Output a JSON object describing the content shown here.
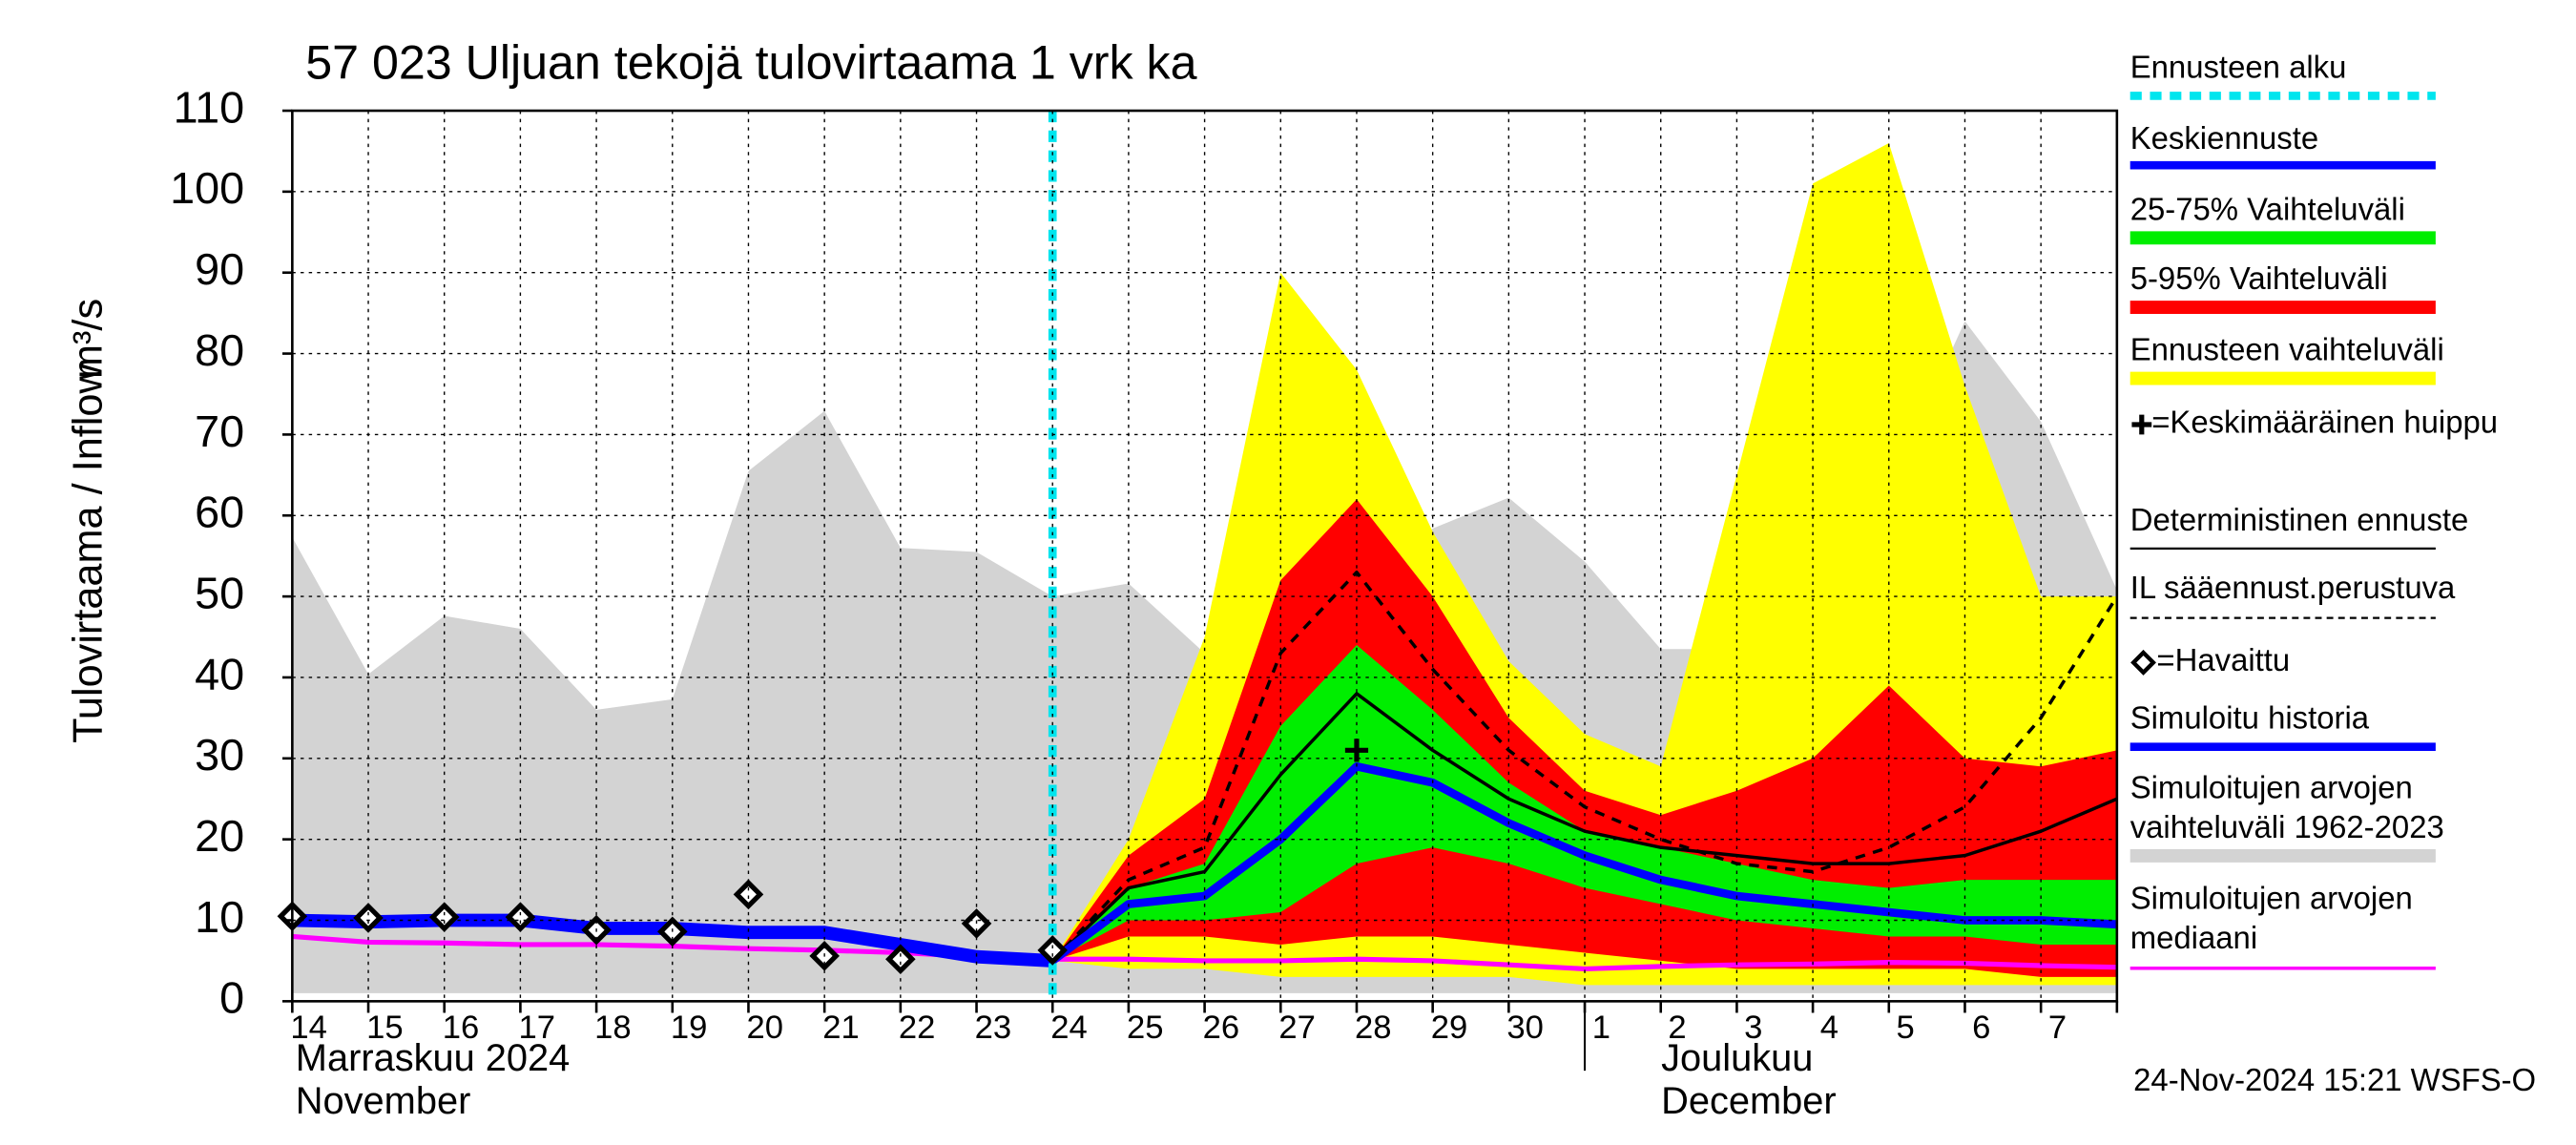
{
  "chart_data": {
    "type": "line",
    "title": "57 023 Uljuan tekojä tulovirtaama 1 vrk ka",
    "y_label": "Tulovirtaama / Inflow",
    "y_unit": "m³/s",
    "month_labels": [
      "Marraskuu 2024",
      "November",
      "Joulukuu",
      "December"
    ],
    "timestamp": "24-Nov-2024 15:21 WSFS-O",
    "categories": [
      "14",
      "15",
      "16",
      "17",
      "18",
      "19",
      "20",
      "21",
      "22",
      "23",
      "24",
      "25",
      "26",
      "27",
      "28",
      "29",
      "30",
      "1",
      "2",
      "3",
      "4",
      "5",
      "6",
      "7",
      null
    ],
    "ylim": [
      0,
      110
    ],
    "yticks": [
      0,
      10,
      20,
      30,
      40,
      50,
      60,
      70,
      80,
      90,
      100,
      110
    ],
    "grid": true,
    "layers": [
      {
        "kind": "vline",
        "name": "Ennusteen alku",
        "color": "#00e5ee",
        "x": "24"
      },
      {
        "kind": "line",
        "name": "Keskiennuste",
        "color": "#0000ff",
        "width": 5,
        "values": [
          null,
          null,
          null,
          null,
          null,
          null,
          null,
          null,
          null,
          null,
          5,
          12,
          13,
          20,
          29,
          27,
          22,
          18,
          15,
          13,
          12,
          11,
          10,
          10,
          9.5
        ]
      },
      {
        "kind": "band",
        "name": "25-75% Vaihteluväli",
        "color": "#00ee00",
        "low": [
          null,
          null,
          null,
          null,
          null,
          null,
          null,
          null,
          null,
          null,
          5,
          10,
          10,
          11,
          17,
          19,
          17,
          14,
          12,
          10,
          9,
          8,
          8,
          7,
          7
        ],
        "high": [
          null,
          null,
          null,
          null,
          null,
          null,
          null,
          null,
          null,
          null,
          5,
          14,
          17,
          34,
          44,
          36,
          27,
          21,
          19,
          17,
          15,
          14,
          15,
          15,
          15
        ]
      },
      {
        "kind": "band",
        "name": "5-95% Vaihteluväli",
        "color": "#ff0000",
        "low": [
          null,
          null,
          null,
          null,
          null,
          null,
          null,
          null,
          null,
          null,
          5,
          8,
          8,
          7,
          8,
          8,
          7,
          6,
          5,
          4,
          4,
          4,
          4,
          3,
          3
        ],
        "high": [
          null,
          null,
          null,
          null,
          null,
          null,
          null,
          null,
          null,
          null,
          5,
          18,
          25,
          52,
          62,
          50,
          35,
          26,
          23,
          26,
          30,
          39,
          30,
          29,
          31
        ]
      },
      {
        "kind": "band",
        "name": "Ennusteen vaihteluväli",
        "color": "#ffff00",
        "low": [
          null,
          null,
          null,
          null,
          null,
          null,
          null,
          null,
          null,
          null,
          5,
          4,
          4,
          3,
          3,
          3,
          3,
          2,
          2,
          2,
          2,
          2,
          2,
          2,
          2
        ],
        "high": [
          null,
          null,
          null,
          null,
          null,
          null,
          null,
          null,
          null,
          null,
          5,
          20,
          45,
          90,
          78,
          58,
          42,
          33,
          29,
          65,
          101,
          106,
          76,
          50,
          50
        ]
      },
      {
        "kind": "peak",
        "name": "=Keskimääräinen huippu",
        "color": "#000000",
        "x": "28",
        "value": 31
      },
      {
        "kind": "line",
        "name": "Deterministinen ennuste",
        "color": "#000000",
        "width": 2,
        "values": [
          null,
          null,
          null,
          null,
          null,
          null,
          null,
          null,
          null,
          null,
          5,
          14,
          16,
          28,
          38,
          31,
          25,
          21,
          19,
          18,
          17,
          17,
          18,
          21,
          25
        ]
      },
      {
        "kind": "line",
        "name": "IL sääennust.perustuva",
        "color": "#000000",
        "width": 2,
        "dash": true,
        "values": [
          null,
          null,
          null,
          null,
          null,
          null,
          null,
          null,
          null,
          null,
          5,
          15,
          19,
          43,
          53,
          41,
          31,
          24,
          20,
          17,
          16,
          19,
          24,
          35,
          50
        ]
      },
      {
        "kind": "points",
        "name": "=Havaittu",
        "color": "#000000",
        "values": [
          10.5,
          10.3,
          10.4,
          10.4,
          8.8,
          8.6,
          13.2,
          5.6,
          5.2,
          9.6,
          6.3,
          null,
          null,
          null,
          null,
          null,
          null,
          null,
          null,
          null,
          null,
          null,
          null,
          null,
          null
        ]
      },
      {
        "kind": "line",
        "name": "Simuloitu historia",
        "color": "#0000ff",
        "width": 8,
        "values": [
          10,
          9.8,
          10,
          10,
          9,
          9,
          8.5,
          8.5,
          7,
          5.5,
          5,
          null,
          null,
          null,
          null,
          null,
          null,
          null,
          null,
          null,
          null,
          null,
          null,
          null,
          null
        ]
      },
      {
        "kind": "band",
        "name": "Simuloitujen arvojen vaihteluväli 1962-2023",
        "color": "#d3d3d3",
        "low": [
          1,
          1,
          1,
          1,
          1,
          1,
          1,
          1,
          1,
          1,
          1,
          1,
          1,
          1,
          1,
          1,
          1,
          1,
          1,
          1,
          1,
          1,
          1,
          1,
          1
        ],
        "high": [
          57.3,
          40.4,
          47.6,
          46,
          36,
          37.3,
          65.5,
          72.9,
          56,
          55.5,
          50,
          51.6,
          43,
          40.2,
          49.4,
          58.4,
          62.2,
          54.3,
          43.5,
          43.5,
          48.6,
          63.3,
          84,
          71.6,
          50.8
        ]
      },
      {
        "kind": "line",
        "name": "Simuloitujen arvojen mediaani",
        "color": "#ff00ff",
        "width": 3,
        "values": [
          8,
          7.3,
          7.2,
          7,
          7,
          6.8,
          6.5,
          6.3,
          6,
          5.5,
          5.2,
          5.2,
          5,
          5,
          5.2,
          5,
          4.5,
          4,
          4.3,
          4.5,
          4.6,
          4.8,
          4.7,
          4.4,
          4.2
        ]
      }
    ]
  }
}
